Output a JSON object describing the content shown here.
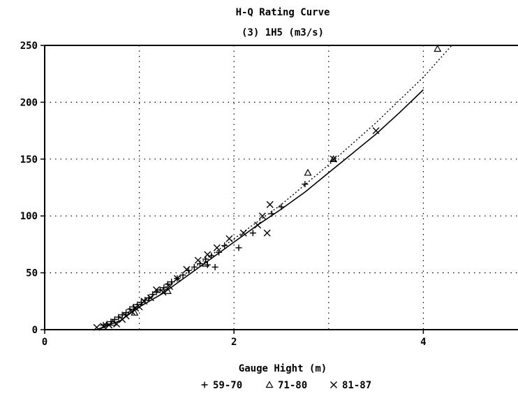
{
  "chart_data": {
    "type": "scatter",
    "title": "H-Q Rating Curve",
    "subtitle": "(3) 1H5 (m3/s)",
    "xlabel": "Gauge Hight (m)",
    "ylabel": "",
    "xlim": [
      0,
      5
    ],
    "ylim": [
      0,
      250
    ],
    "xticks": [
      0,
      2,
      4
    ],
    "yticks": [
      0,
      50,
      100,
      150,
      200,
      250
    ],
    "grid": true,
    "legend_position": "bottom",
    "series": [
      {
        "name": "59-70",
        "marker": "plus",
        "points": [
          [
            0.62,
            4
          ],
          [
            0.66,
            5
          ],
          [
            0.7,
            7
          ],
          [
            0.74,
            9
          ],
          [
            0.78,
            11
          ],
          [
            0.82,
            13
          ],
          [
            0.86,
            15
          ],
          [
            0.9,
            18
          ],
          [
            0.94,
            20
          ],
          [
            0.98,
            22
          ],
          [
            1.02,
            24
          ],
          [
            1.06,
            26
          ],
          [
            1.1,
            28
          ],
          [
            1.14,
            31
          ],
          [
            1.18,
            33
          ],
          [
            1.22,
            35
          ],
          [
            1.26,
            37
          ],
          [
            1.3,
            40
          ],
          [
            1.34,
            42
          ],
          [
            1.4,
            45
          ],
          [
            1.46,
            48
          ],
          [
            1.52,
            52
          ],
          [
            1.58,
            55
          ],
          [
            1.64,
            58
          ],
          [
            1.7,
            62
          ],
          [
            1.72,
            57
          ],
          [
            1.76,
            65
          ],
          [
            1.8,
            55
          ],
          [
            1.84,
            68
          ],
          [
            1.9,
            74
          ],
          [
            2.05,
            72
          ],
          [
            2.2,
            85
          ],
          [
            2.4,
            102
          ],
          [
            2.5,
            108
          ],
          [
            2.75,
            128
          ]
        ]
      },
      {
        "name": "71-80",
        "marker": "triangle",
        "points": [
          [
            0.72,
            6
          ],
          [
            0.95,
            15
          ],
          [
            1.3,
            34
          ],
          [
            1.7,
            58
          ],
          [
            2.78,
            138
          ],
          [
            3.05,
            150
          ],
          [
            4.15,
            247
          ]
        ]
      },
      {
        "name": "81-87",
        "marker": "cross",
        "points": [
          [
            0.55,
            2
          ],
          [
            0.62,
            3
          ],
          [
            0.68,
            4
          ],
          [
            0.76,
            5
          ],
          [
            0.82,
            9
          ],
          [
            0.86,
            12
          ],
          [
            0.92,
            16
          ],
          [
            0.96,
            19
          ],
          [
            1.0,
            20
          ],
          [
            1.05,
            25
          ],
          [
            1.12,
            28
          ],
          [
            1.18,
            35
          ],
          [
            1.25,
            33
          ],
          [
            1.32,
            38
          ],
          [
            1.4,
            45
          ],
          [
            1.5,
            53
          ],
          [
            1.62,
            61
          ],
          [
            1.72,
            66
          ],
          [
            1.82,
            72
          ],
          [
            1.95,
            80
          ],
          [
            2.1,
            85
          ],
          [
            2.25,
            92
          ],
          [
            2.3,
            100
          ],
          [
            2.35,
            85
          ],
          [
            2.38,
            110
          ],
          [
            3.05,
            150
          ],
          [
            3.5,
            175
          ]
        ]
      }
    ],
    "curves": [
      {
        "style": "solid",
        "points": [
          [
            0.55,
            0
          ],
          [
            0.8,
            8
          ],
          [
            1.0,
            20
          ],
          [
            1.25,
            32
          ],
          [
            1.5,
            47
          ],
          [
            1.75,
            62
          ],
          [
            2.0,
            77
          ],
          [
            2.25,
            92
          ],
          [
            2.5,
            106
          ],
          [
            2.75,
            121
          ],
          [
            3.0,
            138
          ],
          [
            3.25,
            155
          ],
          [
            3.5,
            172
          ],
          [
            3.75,
            191
          ],
          [
            4.0,
            211
          ]
        ]
      },
      {
        "style": "dotted",
        "points": [
          [
            0.6,
            0
          ],
          [
            1.0,
            22
          ],
          [
            1.5,
            50
          ],
          [
            2.0,
            80
          ],
          [
            2.5,
            110
          ],
          [
            3.0,
            145
          ],
          [
            3.5,
            182
          ],
          [
            4.0,
            222
          ],
          [
            4.3,
            250
          ]
        ]
      }
    ]
  }
}
